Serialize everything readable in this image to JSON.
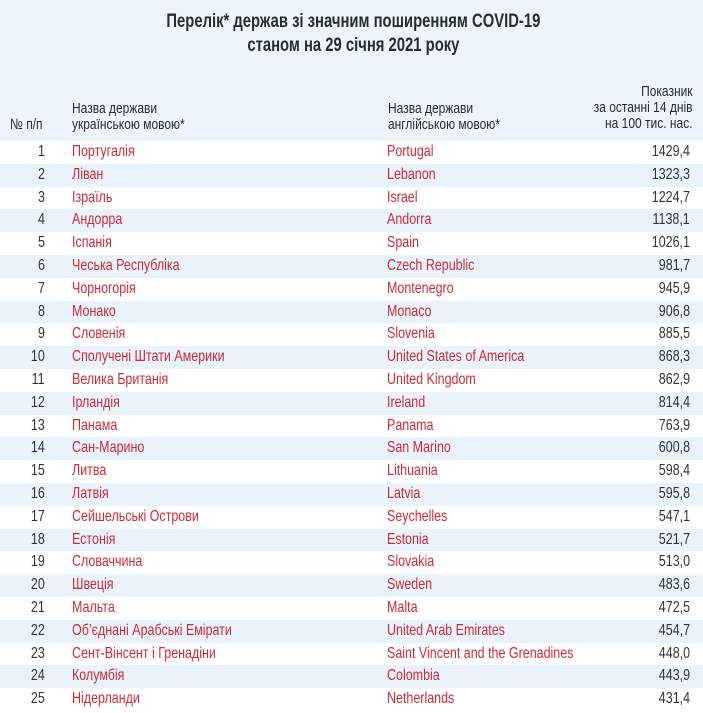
{
  "title": {
    "line1": "Перелік* держав зі значним поширенням COVID-19",
    "line2": "станом на 29 січня 2021 року"
  },
  "columns": {
    "num": "№ п/п",
    "ua": [
      "Назва держави",
      "українською мовою*"
    ],
    "en": [
      "Назва держави",
      "англійською мовою*"
    ],
    "value": [
      "Показник",
      "за останні 14 днів",
      "на 100 тис. нас."
    ]
  },
  "colors": {
    "header_bg": "#eef4fb",
    "stripe_bg": "#eaf2fb",
    "country_text": "#cc2a36",
    "number_text": "#333333"
  },
  "rows": [
    {
      "num": "1",
      "ua": "Португалія",
      "en": "Portugal",
      "value": "1429,4"
    },
    {
      "num": "2",
      "ua": "Ліван",
      "en": "Lebanon",
      "value": "1323,3"
    },
    {
      "num": "3",
      "ua": "Ізраїль",
      "en": "Israel",
      "value": "1224,7"
    },
    {
      "num": "4",
      "ua": "Андорра",
      "en": "Andorra",
      "value": "1138,1"
    },
    {
      "num": "5",
      "ua": "Іспанія",
      "en": "Spain",
      "value": "1026,1"
    },
    {
      "num": "6",
      "ua": "Чеська Республіка",
      "en": "Czech Republic",
      "value": "981,7"
    },
    {
      "num": "7",
      "ua": "Чорногорія",
      "en": "Montenegro",
      "value": "945,9"
    },
    {
      "num": "8",
      "ua": "Монако",
      "en": "Monaco",
      "value": "906,8"
    },
    {
      "num": "9",
      "ua": "Словенія",
      "en": "Slovenia",
      "value": "885,5"
    },
    {
      "num": "10",
      "ua": "Сполучені Штати Америки",
      "en": "United States of America",
      "value": "868,3"
    },
    {
      "num": "11",
      "ua": "Велика Британія",
      "en": "United Kingdom",
      "value": "862,9"
    },
    {
      "num": "12",
      "ua": "Ірландія",
      "en": "Ireland",
      "value": "814,4"
    },
    {
      "num": "13",
      "ua": "Панама",
      "en": "Panama",
      "value": "763,9"
    },
    {
      "num": "14",
      "ua": "Сан-Марино",
      "en": "San Marino",
      "value": "600,8"
    },
    {
      "num": "15",
      "ua": "Литва",
      "en": "Lithuania",
      "value": "598,4"
    },
    {
      "num": "16",
      "ua": "Латвія",
      "en": "Latvia",
      "value": "595,8"
    },
    {
      "num": "17",
      "ua": "Сейшельські Острови",
      "en": "Seychelles",
      "value": "547,1"
    },
    {
      "num": "18",
      "ua": "Естонія",
      "en": "Estonia",
      "value": "521,7"
    },
    {
      "num": "19",
      "ua": "Словаччина",
      "en": "Slovakia",
      "value": "513,0"
    },
    {
      "num": "20",
      "ua": "Швеція",
      "en": "Sweden",
      "value": "483,6"
    },
    {
      "num": "21",
      "ua": "Мальта",
      "en": "Malta",
      "value": "472,5"
    },
    {
      "num": "22",
      "ua": "Об’єднані Арабські Емірати",
      "en": "United Arab Emirates",
      "value": "454,7"
    },
    {
      "num": "23",
      "ua": "Сент-Вінсент і Гренадіни",
      "en": "Saint Vincent and the Grenadines",
      "value": "448,0"
    },
    {
      "num": "24",
      "ua": "Колумбія",
      "en": "Colombia",
      "value": "443,9"
    },
    {
      "num": "25",
      "ua": "Нідерланди",
      "en": "Netherlands",
      "value": "431,4"
    }
  ]
}
